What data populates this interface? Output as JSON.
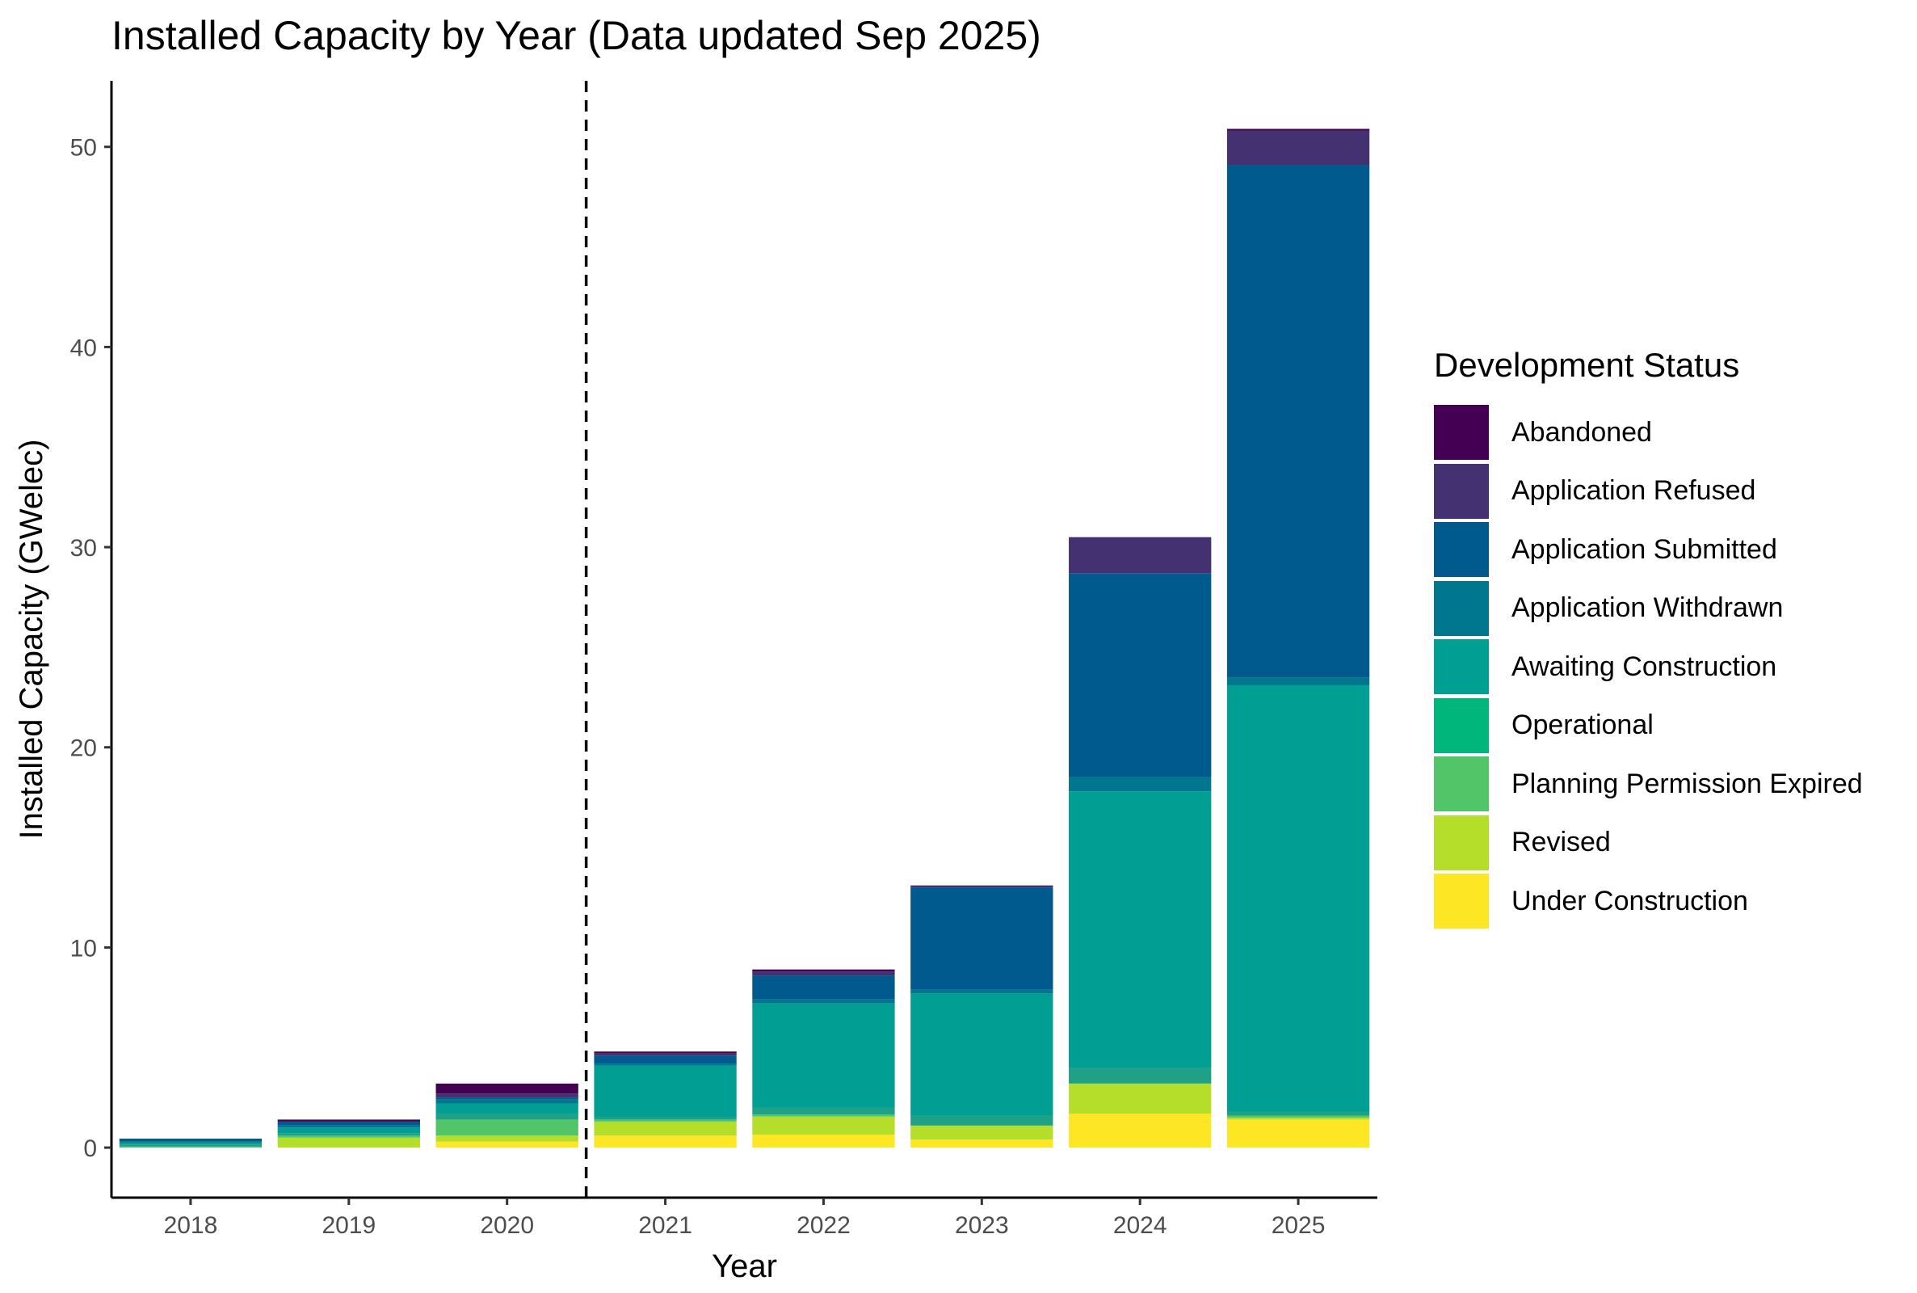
{
  "chart_data": {
    "type": "bar",
    "stacked": true,
    "title": "Installed Capacity by Year (Data updated Sep 2025)",
    "xlabel": "Year",
    "ylabel": "Installed Capacity (GWelec)",
    "ylim": [
      -2.5,
      53.3
    ],
    "yticks": [
      0,
      10,
      20,
      30,
      40,
      50
    ],
    "grid": false,
    "legend_position": "right",
    "legend_title": "Development Status",
    "categories": [
      "2018",
      "2019",
      "2020",
      "2021",
      "2022",
      "2023",
      "2024",
      "2025"
    ],
    "reference_line": {
      "style": "dashed",
      "between": [
        "2020",
        "2021"
      ]
    },
    "series": [
      {
        "name": "Under Construction",
        "color": "#FDE725",
        "values": [
          0.0,
          0.0,
          0.3,
          0.6,
          0.65,
          0.4,
          1.7,
          1.4
        ]
      },
      {
        "name": "Revised",
        "color": "#B5DE2B",
        "values": [
          0.0,
          0.5,
          0.3,
          0.7,
          0.9,
          0.7,
          1.5,
          0.1
        ]
      },
      {
        "name": "Planning Permission Expired",
        "color": "#52C569",
        "values": [
          0.05,
          0.1,
          0.8,
          0.1,
          0.1,
          0.0,
          0.0,
          0.1
        ]
      },
      {
        "name": "Operational",
        "color": "#1FA187",
        "values": [
          0.1,
          0.1,
          0.3,
          0.1,
          0.35,
          0.5,
          0.8,
          0.2
        ]
      },
      {
        "name": "Awaiting Construction",
        "color": "#009E93",
        "values": [
          0.1,
          0.3,
          0.5,
          2.6,
          5.2,
          6.1,
          13.8,
          21.3
        ]
      },
      {
        "name": "Application Withdrawn",
        "color": "#00768F",
        "values": [
          0.05,
          0.1,
          0.2,
          0.1,
          0.2,
          0.2,
          0.7,
          0.4
        ]
      },
      {
        "name": "Application Submitted",
        "color": "#005A8D",
        "values": [
          0.15,
          0.2,
          0.1,
          0.4,
          1.2,
          5.1,
          10.2,
          25.6
        ]
      },
      {
        "name": "Application Refused",
        "color": "#433171",
        "values": [
          0.0,
          0.0,
          0.2,
          0.1,
          0.2,
          0.1,
          1.8,
          1.7
        ]
      },
      {
        "name": "Abandoned",
        "color": "#440154",
        "values": [
          0.0,
          0.1,
          0.5,
          0.1,
          0.1,
          0.0,
          0.0,
          0.1
        ]
      }
    ],
    "legend_items": [
      {
        "label": "Abandoned",
        "color": "#440154"
      },
      {
        "label": "Application Refused",
        "color": "#433171"
      },
      {
        "label": "Application Submitted",
        "color": "#005A8D"
      },
      {
        "label": "Application Withdrawn",
        "color": "#00768F"
      },
      {
        "label": "Awaiting Construction",
        "color": "#009E93"
      },
      {
        "label": "Operational",
        "color": "#00B67A"
      },
      {
        "label": "Planning Permission Expired",
        "color": "#52C569"
      },
      {
        "label": "Revised",
        "color": "#B5DE2B"
      },
      {
        "label": "Under Construction",
        "color": "#FDE725"
      }
    ]
  }
}
